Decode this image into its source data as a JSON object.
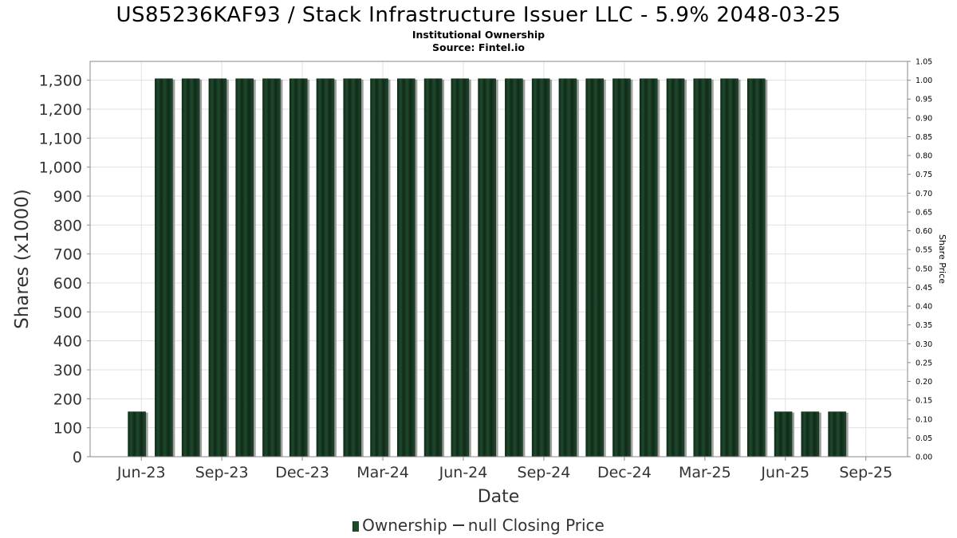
{
  "chart_data": {
    "type": "bar",
    "title": "US85236KAF93 / Stack Infrastructure Issuer LLC - 5.9% 2048-03-25",
    "subtitle": "Institutional Ownership",
    "source": "Source: Fintel.io",
    "xlabel": "Date",
    "ylabel": "Shares (x1000)",
    "y2label": "Share Price",
    "ylim": [
      0,
      1365
    ],
    "y2lim": [
      0,
      1.05
    ],
    "yticks": [
      0,
      100,
      200,
      300,
      400,
      500,
      600,
      700,
      800,
      900,
      1000,
      1100,
      1200,
      1300
    ],
    "ytick_labels": [
      "0",
      "100",
      "200",
      "300",
      "400",
      "500",
      "600",
      "700",
      "800",
      "900",
      "1,000",
      "1,100",
      "1,200",
      "1,300"
    ],
    "y2ticks": [
      0,
      0.05,
      0.1,
      0.15,
      0.2,
      0.25,
      0.3,
      0.35,
      0.4,
      0.45,
      0.5,
      0.55,
      0.6,
      0.65,
      0.7,
      0.75,
      0.8,
      0.85,
      0.9,
      0.95,
      1.0,
      1.05
    ],
    "y2tick_labels": [
      "0.00",
      "0.05",
      "0.10",
      "0.15",
      "0.20",
      "0.25",
      "0.30",
      "0.35",
      "0.40",
      "0.45",
      "0.50",
      "0.55",
      "0.60",
      "0.65",
      "0.70",
      "0.75",
      "0.80",
      "0.85",
      "0.90",
      "0.95",
      "1.00",
      "1.05"
    ],
    "xtick_labels": [
      "Jun-23",
      "Sep-23",
      "Dec-23",
      "Mar-24",
      "Jun-24",
      "Sep-24",
      "Dec-24",
      "Mar-25",
      "Jun-25",
      "Sep-25"
    ],
    "grid": true,
    "legend_position": "bottom",
    "colors": {
      "bar": "#1f4a2a",
      "bar_dark": "#10291a",
      "shadow": "#a0a0a0",
      "grid": "#e0e0e0"
    },
    "series": [
      {
        "name": "Ownership",
        "values": [
          155,
          1305,
          1305,
          1305,
          1305,
          1305,
          1305,
          1305,
          1305,
          1305,
          1305,
          1305,
          1305,
          1305,
          1305,
          1305,
          1305,
          1305,
          1305,
          1305,
          1305,
          1305,
          1305,
          1305,
          155,
          155,
          155
        ]
      }
    ]
  },
  "legend": {
    "ownership_label": "Ownership",
    "price_label": "null Closing Price"
  }
}
